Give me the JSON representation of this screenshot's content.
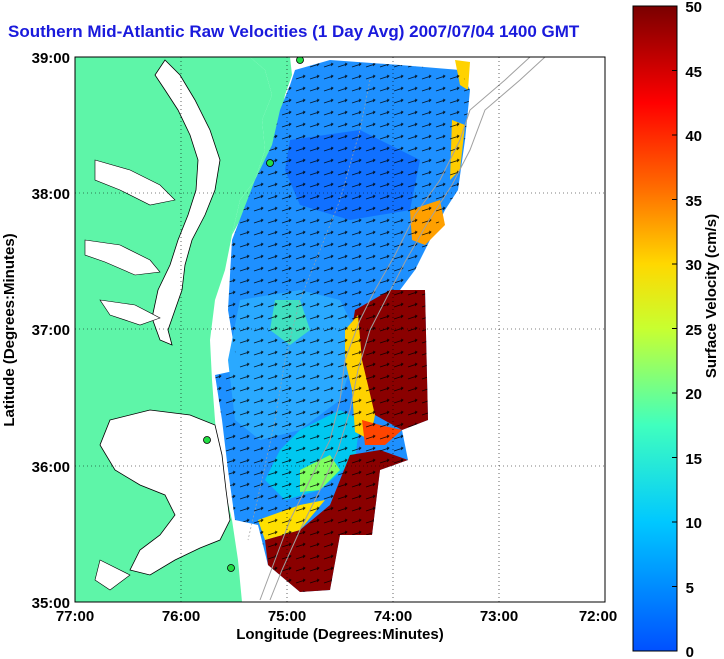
{
  "title": "Southern Mid-Atlantic Raw Velocities (1 Day Avg) 2007/07/04 1400 GMT",
  "axes": {
    "xlabel": "Longitude (Degrees:Minutes)",
    "ylabel": "Latitude (Degrees:Minutes)",
    "xticks": [
      "77:00",
      "76:00",
      "75:00",
      "74:00",
      "73:00",
      "72:00"
    ],
    "yticks": [
      "39:00",
      "38:00",
      "37:00",
      "36:00",
      "35:00"
    ]
  },
  "colorbar": {
    "label": "Surface Velocity (cm/s)",
    "ticks": [
      "50",
      "45",
      "40",
      "35",
      "30",
      "25",
      "20",
      "15",
      "10",
      "5",
      "0"
    ],
    "min": 0,
    "max": 50
  },
  "colors": {
    "land": "#5ef5a8",
    "water_background": "#ffffff",
    "title_color": "#1a1adc",
    "vector_color": "#000000",
    "station_marker": "#22dd44",
    "bathymetry": "#a0a0a0"
  }
}
